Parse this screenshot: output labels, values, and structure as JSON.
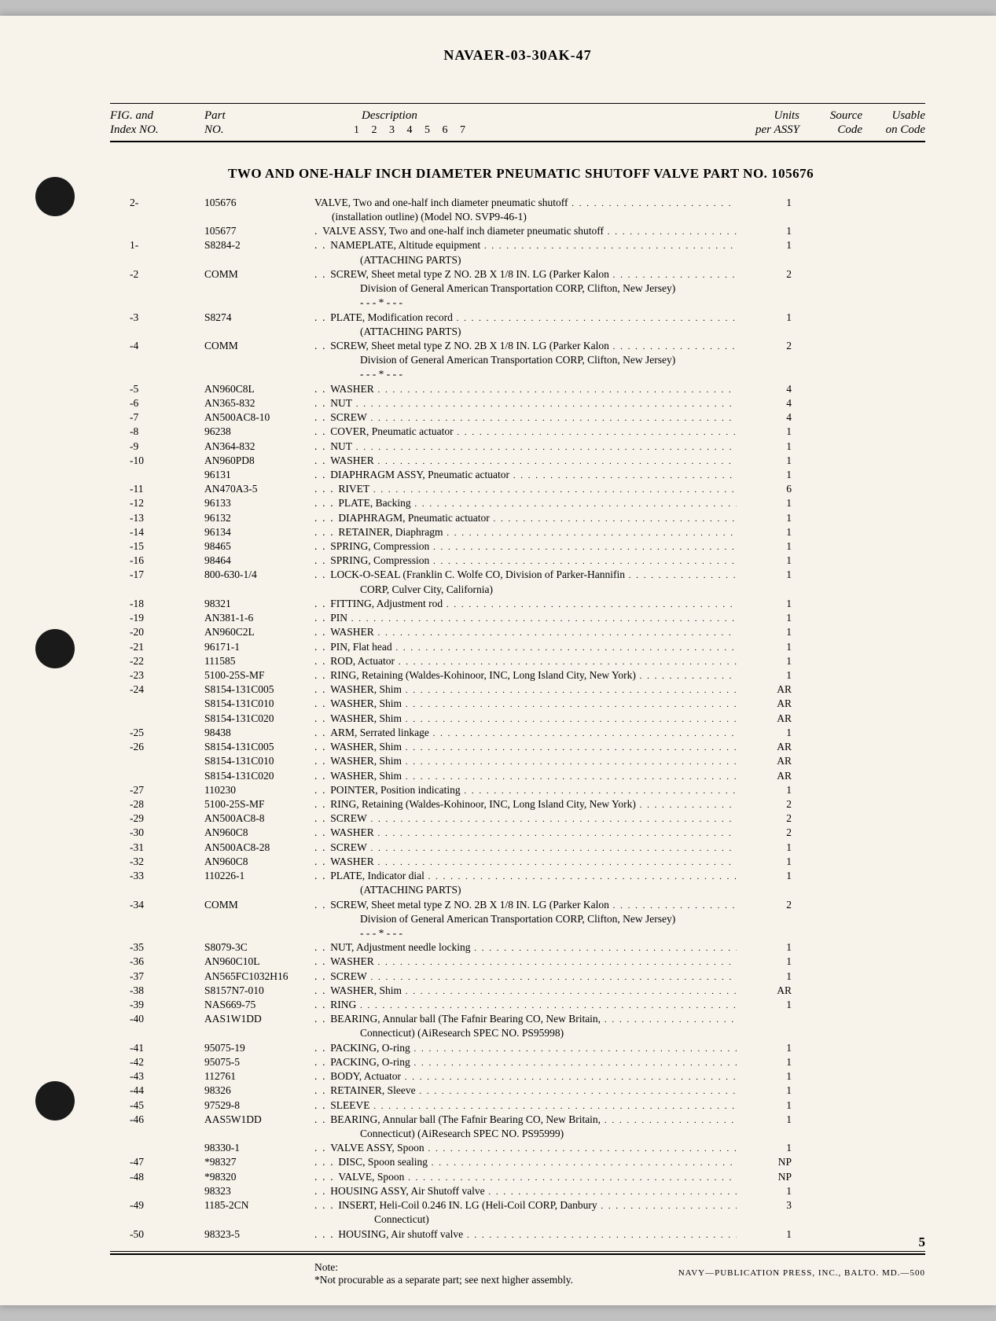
{
  "document_id": "NAVAER-03-30AK-47",
  "columns": {
    "idx_l1": "FIG. and",
    "idx_l2": "Index NO.",
    "part_l1": "Part",
    "part_l2": "NO.",
    "desc": "Description",
    "indent_nums": "1 2 3 4 5 6 7",
    "units_l1": "Units",
    "units_l2": "per ASSY",
    "source_l1": "Source",
    "source_l2": "Code",
    "usable_l1": "Usable",
    "usable_l2": "on Code"
  },
  "section_title": "TWO AND ONE-HALF INCH DIAMETER PNEUMATIC SHUTOFF VALVE PART NO. 105676",
  "rows": [
    {
      "idx": "2-",
      "part": "105676",
      "indent": 0,
      "desc": "VALVE, Two and one-half inch diameter pneumatic shutoff",
      "sub": "(installation outline) (Model NO. SVP9-46-1)",
      "units": "1",
      "dots": true
    },
    {
      "idx": "",
      "part": "105677",
      "indent": 1,
      "desc": "VALVE ASSY, Two and one-half inch diameter pneumatic shutoff",
      "units": "1",
      "dots": true
    },
    {
      "idx": "1-",
      "part": "S8284-2",
      "indent": 2,
      "desc": "NAMEPLATE, Altitude equipment",
      "sub": "(ATTACHING PARTS)",
      "units": "1",
      "dots": true
    },
    {
      "idx": "-2",
      "part": "COMM",
      "indent": 2,
      "desc": "SCREW, Sheet metal type Z NO. 2B X 1/8 IN. LG (Parker Kalon",
      "sub": "Division of General American Transportation CORP, Clifton, New Jersey)",
      "sub2": "- - - * - - -",
      "units": "2",
      "dots": true
    },
    {
      "idx": "-3",
      "part": "S8274",
      "indent": 2,
      "desc": "PLATE, Modification record",
      "sub": "(ATTACHING PARTS)",
      "units": "1",
      "dots": true
    },
    {
      "idx": "-4",
      "part": "COMM",
      "indent": 2,
      "desc": "SCREW, Sheet metal type Z NO. 2B X 1/8 IN. LG (Parker Kalon",
      "sub": "Division of General American Transportation CORP, Clifton, New Jersey)",
      "sub2": "- - - * - - -",
      "units": "2",
      "dots": true
    },
    {
      "idx": "-5",
      "part": "AN960C8L",
      "indent": 2,
      "desc": "WASHER",
      "units": "4",
      "dots": true
    },
    {
      "idx": "-6",
      "part": "AN365-832",
      "indent": 2,
      "desc": "NUT",
      "units": "4",
      "dots": true
    },
    {
      "idx": "-7",
      "part": "AN500AC8-10",
      "indent": 2,
      "desc": "SCREW",
      "units": "4",
      "dots": true
    },
    {
      "idx": "-8",
      "part": "96238",
      "indent": 2,
      "desc": "COVER, Pneumatic actuator",
      "units": "1",
      "dots": true
    },
    {
      "idx": "-9",
      "part": "AN364-832",
      "indent": 2,
      "desc": "NUT",
      "units": "1",
      "dots": true
    },
    {
      "idx": "-10",
      "part": "AN960PD8",
      "indent": 2,
      "desc": "WASHER",
      "units": "1",
      "dots": true
    },
    {
      "idx": "",
      "part": "96131",
      "indent": 2,
      "desc": "DIAPHRAGM ASSY, Pneumatic actuator",
      "units": "1",
      "dots": true
    },
    {
      "idx": "-11",
      "part": "AN470A3-5",
      "indent": 3,
      "desc": "RIVET",
      "units": "6",
      "dots": true
    },
    {
      "idx": "-12",
      "part": "96133",
      "indent": 3,
      "desc": "PLATE, Backing",
      "units": "1",
      "dots": true
    },
    {
      "idx": "-13",
      "part": "96132",
      "indent": 3,
      "desc": "DIAPHRAGM, Pneumatic actuator",
      "units": "1",
      "dots": true
    },
    {
      "idx": "-14",
      "part": "96134",
      "indent": 3,
      "desc": "RETAINER, Diaphragm",
      "units": "1",
      "dots": true
    },
    {
      "idx": "-15",
      "part": "98465",
      "indent": 2,
      "desc": "SPRING, Compression",
      "units": "1",
      "dots": true
    },
    {
      "idx": "-16",
      "part": "98464",
      "indent": 2,
      "desc": "SPRING, Compression",
      "units": "1",
      "dots": true
    },
    {
      "idx": "-17",
      "part": "800-630-1/4",
      "indent": 2,
      "desc": "LOCK-O-SEAL (Franklin C. Wolfe CO, Division of Parker-Hannifin",
      "sub": "CORP, Culver City, California)",
      "units": "1",
      "dots": true
    },
    {
      "idx": "-18",
      "part": "98321",
      "indent": 2,
      "desc": "FITTING, Adjustment rod",
      "units": "1",
      "dots": true
    },
    {
      "idx": "-19",
      "part": "AN381-1-6",
      "indent": 2,
      "desc": "PIN",
      "units": "1",
      "dots": true
    },
    {
      "idx": "-20",
      "part": "AN960C2L",
      "indent": 2,
      "desc": "WASHER",
      "units": "1",
      "dots": true
    },
    {
      "idx": "-21",
      "part": "96171-1",
      "indent": 2,
      "desc": "PIN, Flat head",
      "units": "1",
      "dots": true
    },
    {
      "idx": "-22",
      "part": "111585",
      "indent": 2,
      "desc": "ROD, Actuator",
      "units": "1",
      "dots": true
    },
    {
      "idx": "-23",
      "part": "5100-25S-MF",
      "indent": 2,
      "desc": "RING, Retaining (Waldes-Kohinoor, INC, Long Island City, New York)",
      "units": "1",
      "dots": true
    },
    {
      "idx": "-24",
      "part": "S8154-131C005",
      "indent": 2,
      "desc": "WASHER, Shim",
      "units": "AR",
      "dots": true
    },
    {
      "idx": "",
      "part": "S8154-131C010",
      "indent": 2,
      "desc": "WASHER, Shim",
      "units": "AR",
      "dots": true
    },
    {
      "idx": "",
      "part": "S8154-131C020",
      "indent": 2,
      "desc": "WASHER, Shim",
      "units": "AR",
      "dots": true
    },
    {
      "idx": "-25",
      "part": "98438",
      "indent": 2,
      "desc": "ARM, Serrated linkage",
      "units": "1",
      "dots": true
    },
    {
      "idx": "-26",
      "part": "S8154-131C005",
      "indent": 2,
      "desc": "WASHER, Shim",
      "units": "AR",
      "dots": true
    },
    {
      "idx": "",
      "part": "S8154-131C010",
      "indent": 2,
      "desc": "WASHER, Shim",
      "units": "AR",
      "dots": true
    },
    {
      "idx": "",
      "part": "S8154-131C020",
      "indent": 2,
      "desc": "WASHER, Shim",
      "units": "AR",
      "dots": true
    },
    {
      "idx": "-27",
      "part": "110230",
      "indent": 2,
      "desc": "POINTER, Position indicating",
      "units": "1",
      "dots": true
    },
    {
      "idx": "-28",
      "part": "5100-25S-MF",
      "indent": 2,
      "desc": "RING, Retaining (Waldes-Kohinoor, INC, Long Island City, New York)",
      "units": "2",
      "dots": true
    },
    {
      "idx": "-29",
      "part": "AN500AC8-8",
      "indent": 2,
      "desc": "SCREW",
      "units": "2",
      "dots": true
    },
    {
      "idx": "-30",
      "part": "AN960C8",
      "indent": 2,
      "desc": "WASHER",
      "units": "2",
      "dots": true
    },
    {
      "idx": "-31",
      "part": "AN500AC8-28",
      "indent": 2,
      "desc": "SCREW",
      "units": "1",
      "dots": true
    },
    {
      "idx": "-32",
      "part": "AN960C8",
      "indent": 2,
      "desc": "WASHER",
      "units": "1",
      "dots": true
    },
    {
      "idx": "-33",
      "part": "110226-1",
      "indent": 2,
      "desc": "PLATE, Indicator dial",
      "sub": "(ATTACHING PARTS)",
      "units": "1",
      "dots": true
    },
    {
      "idx": "-34",
      "part": "COMM",
      "indent": 2,
      "desc": "SCREW, Sheet metal type Z NO. 2B X 1/8 IN. LG (Parker Kalon",
      "sub": "Division of General American Transportation CORP, Clifton, New Jersey)",
      "sub2": "- - - * - - -",
      "units": "2",
      "dots": true
    },
    {
      "idx": "-35",
      "part": "S8079-3C",
      "indent": 2,
      "desc": "NUT, Adjustment needle locking",
      "units": "1",
      "dots": true
    },
    {
      "idx": "-36",
      "part": "AN960C10L",
      "indent": 2,
      "desc": "WASHER",
      "units": "1",
      "dots": true
    },
    {
      "idx": "-37",
      "part": "AN565FC1032H16",
      "indent": 2,
      "desc": "SCREW",
      "units": "1",
      "dots": true
    },
    {
      "idx": "-38",
      "part": "S8157N7-010",
      "indent": 2,
      "desc": "WASHER, Shim",
      "units": "AR",
      "dots": true
    },
    {
      "idx": "-39",
      "part": "NAS669-75",
      "indent": 2,
      "desc": "RING",
      "units": "1",
      "dots": true
    },
    {
      "idx": "-40",
      "part": "AAS1W1DD",
      "indent": 2,
      "desc": "BEARING, Annular ball (The Fafnir Bearing CO, New Britain,",
      "sub": "Connecticut) (AiResearch SPEC NO. PS95998)",
      "units": "",
      "dots": true
    },
    {
      "idx": "-41",
      "part": "95075-19",
      "indent": 2,
      "desc": "PACKING, O-ring",
      "units": "1",
      "dots": true
    },
    {
      "idx": "-42",
      "part": "95075-5",
      "indent": 2,
      "desc": "PACKING, O-ring",
      "units": "1",
      "dots": true
    },
    {
      "idx": "-43",
      "part": "112761",
      "indent": 2,
      "desc": "BODY, Actuator",
      "units": "1",
      "dots": true
    },
    {
      "idx": "-44",
      "part": "98326",
      "indent": 2,
      "desc": "RETAINER, Sleeve",
      "units": "1",
      "dots": true
    },
    {
      "idx": "-45",
      "part": "97529-8",
      "indent": 2,
      "desc": "SLEEVE",
      "units": "1",
      "dots": true
    },
    {
      "idx": "-46",
      "part": "AAS5W1DD",
      "indent": 2,
      "desc": "BEARING, Annular ball (The Fafnir Bearing CO, New Britain,",
      "sub": "Connecticut) (AiResearch SPEC NO. PS95999)",
      "units": "1",
      "dots": true
    },
    {
      "idx": "",
      "part": "98330-1",
      "indent": 2,
      "desc": "VALVE ASSY, Spoon",
      "units": "1",
      "dots": true
    },
    {
      "idx": "-47",
      "part": "*98327",
      "indent": 3,
      "desc": "DISC, Spoon sealing",
      "units": "NP",
      "dots": true
    },
    {
      "idx": "-48",
      "part": "*98320",
      "indent": 3,
      "desc": "VALVE, Spoon",
      "units": "NP",
      "dots": true
    },
    {
      "idx": "",
      "part": "98323",
      "indent": 2,
      "desc": "HOUSING ASSY, Air Shutoff valve",
      "units": "1",
      "dots": true
    },
    {
      "idx": "-49",
      "part": "1185-2CN",
      "indent": 3,
      "desc": "INSERT, Heli-Coil 0.246 IN. LG (Heli-Coil CORP, Danbury",
      "sub": "Connecticut)",
      "units": "3",
      "dots": true
    },
    {
      "idx": "-50",
      "part": "98323-5",
      "indent": 3,
      "desc": "HOUSING, Air shutoff valve",
      "units": "1",
      "dots": true
    }
  ],
  "note_label": "Note:",
  "note_text": "*Not procurable as a separate part; see next higher assembly.",
  "page_number": "5",
  "footer_text": "NAVY—PUBLICATION PRESS, INC., BALTO. MD.—500"
}
